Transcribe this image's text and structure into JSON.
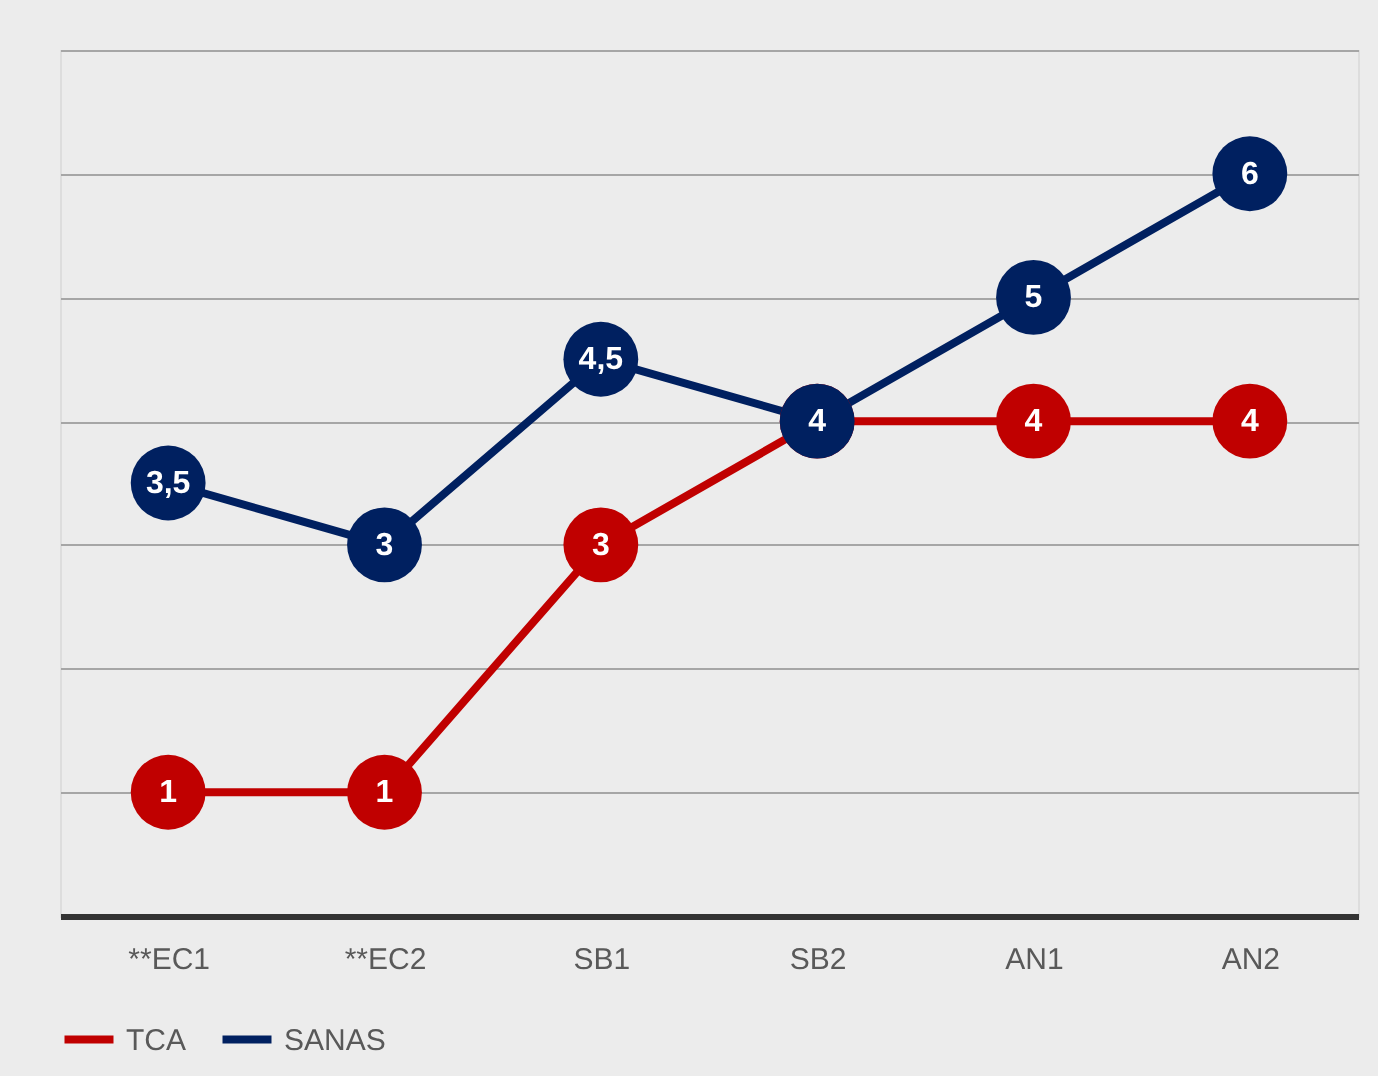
{
  "chart_data": {
    "type": "line",
    "categories": [
      "**EC1",
      "**EC2",
      "SB1",
      "SB2",
      "AN1",
      "AN2"
    ],
    "series": [
      {
        "name": "TCA",
        "color": "#c00000",
        "values": [
          1,
          1,
          3,
          4,
          4,
          4
        ],
        "value_labels": [
          "1",
          "1",
          "3",
          null,
          "4",
          "4"
        ]
      },
      {
        "name": "SANAS",
        "color": "#002060",
        "values": [
          3.5,
          3,
          4.5,
          4,
          5,
          6
        ],
        "value_labels": [
          "3,5",
          "3",
          "4,5",
          "4",
          "5",
          "6"
        ]
      }
    ],
    "ylim": [
      0,
      7
    ],
    "yticks": [
      {
        "value": 0,
        "label": null
      },
      {
        "value": 1,
        "label": null
      },
      {
        "value": 2,
        "label": null
      },
      {
        "value": 3,
        "label": null
      },
      {
        "value": 4,
        "label": null
      },
      {
        "value": 5,
        "label": null
      },
      {
        "value": 6,
        "label": null
      },
      {
        "value": 7,
        "label": null
      }
    ],
    "tick_labels": "x",
    "grid": "y",
    "legend": "bottom",
    "marker": "circle",
    "line_style": "solid"
  }
}
